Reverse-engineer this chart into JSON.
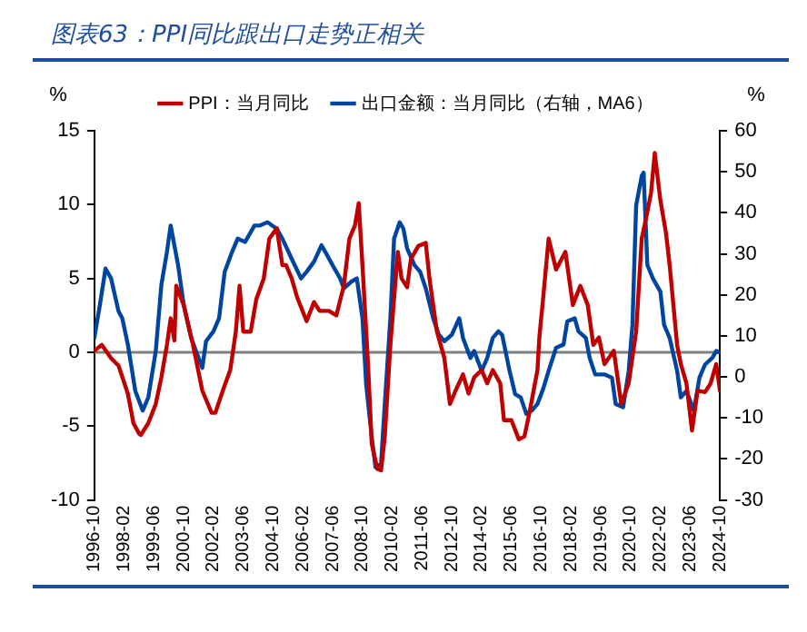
{
  "chart_data": {
    "type": "line",
    "title": "图表63：PPI同比跟出口走势正相关",
    "ylabel": "%",
    "y2label": "%",
    "xlim": [
      "1996-10",
      "2024-10"
    ],
    "xticks": [
      "1996-10",
      "1998-02",
      "1999-06",
      "2000-10",
      "2002-02",
      "2003-06",
      "2004-10",
      "2006-02",
      "2007-06",
      "2008-10",
      "2010-02",
      "2011-06",
      "2012-10",
      "2014-02",
      "2015-06",
      "2016-10",
      "2018-02",
      "2019-06",
      "2020-10",
      "2022-02",
      "2023-06",
      "2024-10"
    ],
    "ylim": [
      -10,
      15
    ],
    "yticks": [
      -10,
      -5,
      0,
      5,
      10,
      15
    ],
    "y2lim": [
      -30,
      60
    ],
    "y2ticks": [
      -30,
      -20,
      -10,
      0,
      10,
      20,
      30,
      40,
      50,
      60
    ],
    "grid": false,
    "legend": "top",
    "marker": "none",
    "line_style": "solid",
    "ref_lines": [
      {
        "axis": "y",
        "value": 0,
        "color": "#808080"
      }
    ],
    "series": [
      {
        "name": "PPI：当月同比",
        "color": "#c00000",
        "x": [
          "1996-10",
          "1997-02",
          "1997-07",
          "1997-11",
          "1998-04",
          "1998-07",
          "1998-10",
          "1998-11",
          "1999-03",
          "1999-07",
          "1999-10",
          "2000-01",
          "2000-03",
          "2000-05",
          "2000-06",
          "2000-10",
          "2001-03",
          "2001-08",
          "2002-01",
          "2002-03",
          "2002-07",
          "2002-11",
          "2003-02",
          "2003-04",
          "2003-06",
          "2003-10",
          "2004-01",
          "2004-05",
          "2004-08",
          "2004-12",
          "2005-03",
          "2005-05",
          "2005-08",
          "2005-11",
          "2006-04",
          "2006-08",
          "2006-11",
          "2007-04",
          "2007-08",
          "2007-12",
          "2008-03",
          "2008-06",
          "2008-08",
          "2008-10",
          "2009-01",
          "2009-03",
          "2009-06",
          "2009-08",
          "2009-10",
          "2010-01",
          "2010-05",
          "2010-07",
          "2010-10",
          "2010-12",
          "2011-04",
          "2011-08",
          "2011-10",
          "2012-02",
          "2012-06",
          "2012-09",
          "2012-12",
          "2013-04",
          "2013-07",
          "2013-10",
          "2014-02",
          "2014-05",
          "2014-08",
          "2014-12",
          "2015-02",
          "2015-06",
          "2015-10",
          "2016-01",
          "2016-04",
          "2016-08",
          "2016-09",
          "2016-11",
          "2017-02",
          "2017-06",
          "2017-11",
          "2018-03",
          "2018-07",
          "2018-11",
          "2019-02",
          "2019-05",
          "2019-08",
          "2020-01",
          "2020-05",
          "2020-09",
          "2021-01",
          "2021-04",
          "2021-07",
          "2021-09",
          "2021-11",
          "2022-02",
          "2022-05",
          "2022-07",
          "2022-11",
          "2023-01",
          "2023-04",
          "2023-07",
          "2023-10",
          "2024-02",
          "2024-05",
          "2024-08",
          "2024-10"
        ],
        "values": [
          0.1,
          0.5,
          -0.4,
          -0.9,
          -2.8,
          -4.8,
          -5.5,
          -5.6,
          -4.8,
          -3.5,
          -1.7,
          0.5,
          2.3,
          0.8,
          4.5,
          3.2,
          0.5,
          -2.6,
          -4.1,
          -4.1,
          -2.6,
          -1.2,
          1.4,
          4.5,
          1.4,
          1.4,
          3.6,
          5.0,
          7.7,
          8.4,
          5.9,
          5.9,
          5.0,
          3.7,
          2.1,
          3.4,
          2.8,
          2.8,
          2.5,
          4.5,
          7.7,
          8.6,
          10.1,
          5.9,
          -0.8,
          -6.2,
          -7.9,
          -8.0,
          -5.7,
          0.5,
          6.8,
          5.0,
          4.4,
          6.3,
          7.2,
          7.4,
          5.0,
          1.4,
          -0.4,
          -3.5,
          -2.6,
          -1.5,
          -2.8,
          -1.7,
          -1.2,
          -2.1,
          -1.2,
          -2.1,
          -4.6,
          -4.6,
          -5.9,
          -5.7,
          -3.9,
          -1.2,
          1.0,
          3.6,
          7.7,
          5.6,
          6.8,
          3.2,
          4.5,
          3.2,
          0.5,
          1.0,
          -0.8,
          0.1,
          -3.5,
          -2.1,
          1.4,
          7.7,
          9.5,
          10.8,
          13.5,
          10.3,
          8.1,
          5.9,
          0.5,
          -0.8,
          -2.1,
          -5.3,
          -2.6,
          -2.7,
          -2.1,
          -0.8,
          -2.6
        ]
      },
      {
        "name": "出口金额：当月同比（右轴，MA6）",
        "color": "#0046a0",
        "axis": "y2",
        "x": [
          "1996-10",
          "1997-01",
          "1997-04",
          "1997-07",
          "1997-11",
          "1998-01",
          "1998-04",
          "1998-08",
          "1998-12",
          "1999-03",
          "1999-07",
          "1999-10",
          "2000-01",
          "2000-03",
          "2000-07",
          "2000-10",
          "2001-02",
          "2001-06",
          "2001-08",
          "2001-10",
          "2002-02",
          "2002-05",
          "2002-08",
          "2002-12",
          "2003-03",
          "2003-07",
          "2003-12",
          "2004-03",
          "2004-07",
          "2004-12",
          "2005-03",
          "2005-08",
          "2006-01",
          "2006-04",
          "2006-08",
          "2006-12",
          "2007-03",
          "2007-06",
          "2007-10",
          "2007-12",
          "2008-04",
          "2008-07",
          "2008-10",
          "2008-12",
          "2009-03",
          "2009-05",
          "2009-08",
          "2009-10",
          "2010-01",
          "2010-03",
          "2010-06",
          "2010-08",
          "2010-10",
          "2011-02",
          "2011-05",
          "2011-08",
          "2011-12",
          "2012-03",
          "2012-06",
          "2012-10",
          "2013-02",
          "2013-04",
          "2013-08",
          "2013-10",
          "2014-02",
          "2014-05",
          "2014-08",
          "2014-11",
          "2015-01",
          "2015-05",
          "2015-08",
          "2015-11",
          "2016-02",
          "2016-05",
          "2016-08",
          "2016-11",
          "2017-02",
          "2017-06",
          "2017-10",
          "2017-12",
          "2018-04",
          "2018-06",
          "2018-10",
          "2018-12",
          "2019-03",
          "2019-08",
          "2019-12",
          "2020-02",
          "2020-06",
          "2020-09",
          "2020-11",
          "2021-01",
          "2021-04",
          "2021-05",
          "2021-07",
          "2021-10",
          "2022-02",
          "2022-04",
          "2022-07",
          "2022-11",
          "2023-01",
          "2023-04",
          "2023-08",
          "2023-11",
          "2024-02",
          "2024-06",
          "2024-08",
          "2024-10"
        ],
        "values": [
          9.5,
          17.6,
          26.4,
          24,
          16,
          14.3,
          7.9,
          -3.4,
          -8.2,
          -5,
          6.3,
          22.4,
          30.5,
          36.9,
          27.2,
          17.6,
          9.5,
          4.6,
          2.2,
          8.7,
          11.1,
          14.3,
          25.6,
          30.5,
          33.7,
          32.9,
          36.9,
          36.9,
          37.7,
          36.1,
          33.7,
          28.8,
          24,
          25.6,
          28.1,
          32.1,
          29.7,
          27.2,
          24,
          21.6,
          23.2,
          24,
          14.3,
          -1.8,
          -14.7,
          -22,
          -21.1,
          -6.6,
          14.3,
          33.7,
          37.7,
          36.1,
          31.3,
          27.2,
          25.6,
          21.6,
          14.3,
          10.3,
          8.7,
          10.3,
          14.3,
          9.5,
          4.6,
          6.3,
          1.5,
          4.6,
          9.5,
          11.1,
          10.3,
          1.5,
          -4.2,
          -5,
          -9,
          -8.2,
          -6.6,
          -3,
          1.5,
          7.1,
          7.9,
          13.5,
          14.3,
          11.1,
          9.5,
          4.7,
          0.6,
          0.6,
          -0.2,
          -6.6,
          -7.4,
          1.5,
          12.7,
          41.8,
          49,
          49.8,
          27.3,
          24,
          20.8,
          12.7,
          9.5,
          1.5,
          -5,
          -3.4,
          -8.2,
          -0.2,
          3,
          4.7,
          6.3,
          6
        ]
      }
    ]
  }
}
